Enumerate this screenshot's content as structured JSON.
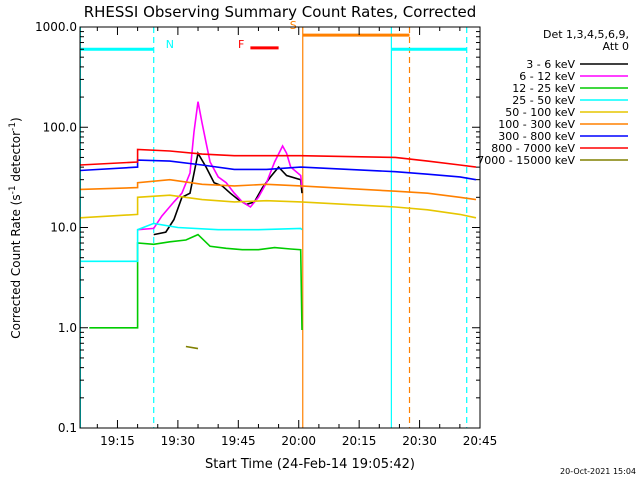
{
  "chart_data": {
    "type": "line",
    "title": "RHESSI Observing Summary Count Rates, Corrected",
    "xlabel": "Start Time (24-Feb-14 19:05:42)",
    "ylabel_main": "Corrected Count Rate (s",
    "ylabel_sup1": "-1",
    "ylabel_mid": " detector",
    "ylabel_sup2": "-1",
    "ylabel_end": ")",
    "x_range_min": [
      5.7,
      105.0
    ],
    "y_scale": "log",
    "ylim": [
      0.1,
      1000.0
    ],
    "x_ticks": [
      {
        "min": 15,
        "label": "19:15"
      },
      {
        "min": 30,
        "label": "19:30"
      },
      {
        "min": 45,
        "label": "19:45"
      },
      {
        "min": 60,
        "label": "20:00"
      },
      {
        "min": 75,
        "label": "20:15"
      },
      {
        "min": 90,
        "label": "20:30"
      },
      {
        "min": 105,
        "label": "20:45"
      }
    ],
    "y_ticks": [
      {
        "v": 0.1,
        "label": "0.1"
      },
      {
        "v": 1.0,
        "label": "1.0"
      },
      {
        "v": 10.0,
        "label": "10.0"
      },
      {
        "v": 100.0,
        "label": "100.0"
      },
      {
        "v": 1000.0,
        "label": "1000.0"
      }
    ],
    "legend_header": [
      "Det 1,3,4,5,6,9,",
      "Att 0"
    ],
    "legend_position": "right",
    "series": [
      {
        "name": "3 - 6 keV",
        "color": "#000000",
        "points": [
          [
            24,
            8.5
          ],
          [
            27,
            9
          ],
          [
            29,
            12
          ],
          [
            31,
            20
          ],
          [
            33,
            22
          ],
          [
            35,
            55
          ],
          [
            37,
            40
          ],
          [
            39,
            28
          ],
          [
            41,
            26
          ],
          [
            43,
            22
          ],
          [
            45,
            19
          ],
          [
            47,
            17
          ],
          [
            49,
            18
          ],
          [
            51,
            25
          ],
          [
            53,
            32
          ],
          [
            55,
            40
          ],
          [
            57,
            33
          ],
          [
            60.5,
            30
          ],
          [
            60.8,
            22
          ]
        ]
      },
      {
        "name": "6 - 12 keV",
        "color": "#ff00ff",
        "points": [
          [
            20,
            9.5
          ],
          [
            24,
            9.8
          ],
          [
            26,
            13
          ],
          [
            29,
            18
          ],
          [
            31,
            22
          ],
          [
            33,
            35
          ],
          [
            34,
            90
          ],
          [
            35,
            180
          ],
          [
            36,
            110
          ],
          [
            37,
            70
          ],
          [
            38,
            45
          ],
          [
            40,
            32
          ],
          [
            42,
            28
          ],
          [
            44,
            22
          ],
          [
            46,
            18
          ],
          [
            48,
            16
          ],
          [
            50,
            20
          ],
          [
            52,
            28
          ],
          [
            54,
            45
          ],
          [
            56,
            65
          ],
          [
            57,
            55
          ],
          [
            58,
            40
          ],
          [
            60.5,
            33
          ],
          [
            60.8,
            25
          ]
        ]
      },
      {
        "name": "12 - 25 keV",
        "color": "#00cc00",
        "points": [
          [
            8,
            1.0
          ],
          [
            20,
            1.0
          ],
          [
            20,
            7
          ],
          [
            24,
            6.8
          ],
          [
            28,
            7.2
          ],
          [
            32,
            7.5
          ],
          [
            35,
            8.5
          ],
          [
            38,
            6.5
          ],
          [
            42,
            6.2
          ],
          [
            46,
            6.0
          ],
          [
            50,
            6.0
          ],
          [
            54,
            6.3
          ],
          [
            58,
            6.1
          ],
          [
            60.5,
            6.0
          ],
          [
            60.8,
            0.95
          ]
        ]
      },
      {
        "name": "25 - 50 keV",
        "color": "#00ffff",
        "points": [
          [
            5.7,
            4.6
          ],
          [
            20,
            4.6
          ],
          [
            20,
            9.5
          ],
          [
            24,
            11
          ],
          [
            30,
            10
          ],
          [
            40,
            9.5
          ],
          [
            50,
            9.5
          ],
          [
            60.5,
            9.8
          ],
          [
            60.8,
            9.5
          ]
        ]
      },
      {
        "name": "50 - 100 keV",
        "color": "#e6c600",
        "points": [
          [
            5.7,
            12.5
          ],
          [
            20,
            13.5
          ],
          [
            20,
            20
          ],
          [
            28,
            21
          ],
          [
            36,
            19
          ],
          [
            44,
            18
          ],
          [
            52,
            18.5
          ],
          [
            60.5,
            18
          ],
          [
            84,
            16
          ],
          [
            92,
            15
          ],
          [
            100,
            13.5
          ],
          [
            104,
            12.5
          ]
        ]
      },
      {
        "name": "100 - 300 keV",
        "color": "#ff8000",
        "points": [
          [
            5.7,
            24
          ],
          [
            20,
            25
          ],
          [
            20,
            28
          ],
          [
            28,
            30
          ],
          [
            36,
            27
          ],
          [
            44,
            26
          ],
          [
            52,
            27
          ],
          [
            60.5,
            26
          ],
          [
            84,
            23
          ],
          [
            92,
            22
          ],
          [
            100,
            20
          ],
          [
            104,
            19
          ]
        ]
      },
      {
        "name": "300 - 800 keV",
        "color": "#0000ff",
        "points": [
          [
            5.7,
            37
          ],
          [
            20,
            40
          ],
          [
            20,
            47
          ],
          [
            28,
            46
          ],
          [
            36,
            42
          ],
          [
            44,
            38
          ],
          [
            52,
            38
          ],
          [
            60.5,
            40
          ],
          [
            84,
            36
          ],
          [
            92,
            34
          ],
          [
            100,
            32
          ],
          [
            104,
            30
          ]
        ]
      },
      {
        "name": "800 - 7000 keV",
        "color": "#ff0000",
        "points": [
          [
            5.7,
            42
          ],
          [
            20,
            45
          ],
          [
            20,
            60
          ],
          [
            28,
            58
          ],
          [
            36,
            54
          ],
          [
            44,
            52
          ],
          [
            52,
            52
          ],
          [
            60.5,
            52
          ],
          [
            84,
            50
          ],
          [
            92,
            46
          ],
          [
            100,
            42
          ],
          [
            104,
            40
          ]
        ]
      },
      {
        "name": "7000 - 15000 keV",
        "color": "#808000",
        "points": [
          [
            32,
            0.65
          ],
          [
            35,
            0.62
          ]
        ]
      }
    ],
    "flag_labels": {
      "n": "N",
      "f": "F",
      "s": "S"
    },
    "flag_colors": {
      "n": "#00ffff",
      "f": "#ff0000",
      "s": "#ff8000"
    },
    "flag_bars": [
      {
        "flag": "n",
        "from": 5.7,
        "to": 24,
        "level": 600
      },
      {
        "flag": "f",
        "from": 48,
        "to": 55,
        "level": 620
      },
      {
        "flag": "s",
        "from": 61,
        "to": 87.5,
        "level": 830
      },
      {
        "flag": "n",
        "from": 83,
        "to": 101.7,
        "level": 600
      }
    ],
    "vlines": [
      {
        "x": 5.8,
        "color": "#00ffff",
        "style": "solid"
      },
      {
        "x": 24.0,
        "color": "#00ffff",
        "style": "dashed"
      },
      {
        "x": 61.0,
        "color": "#ff8000",
        "style": "solid"
      },
      {
        "x": 83.0,
        "color": "#00ffff",
        "style": "solid"
      },
      {
        "x": 87.5,
        "color": "#ff8000",
        "style": "dashed"
      },
      {
        "x": 101.7,
        "color": "#00ffff",
        "style": "dashed"
      }
    ]
  },
  "timestamp": "20-Oct-2021 15:04"
}
